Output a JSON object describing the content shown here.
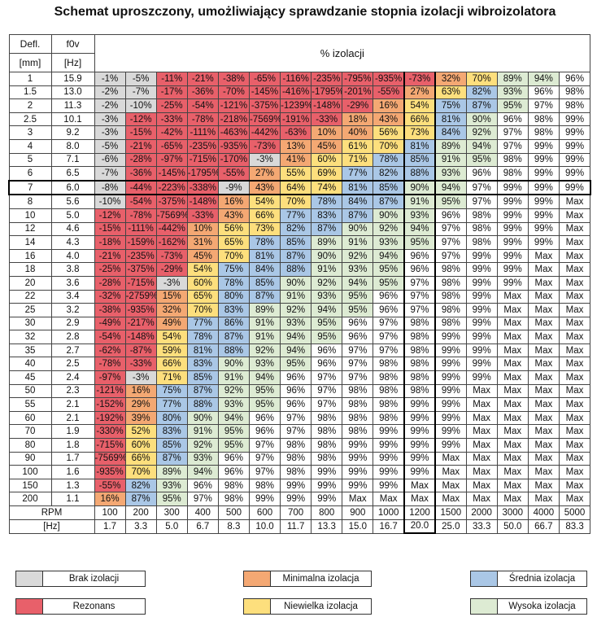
{
  "title": "Schemat uproszczony, umożliwiający sprawdzanie stopnia izolacji wibroizolatora",
  "colors": {
    "none": "#d9d9d9",
    "resonance": "#e8606a",
    "minimal": "#f4a873",
    "slight": "#fddf7d",
    "medium": "#aac7e6",
    "high": "#ddebd3",
    "white": "#ffffff"
  },
  "table": {
    "h1": "Defl.",
    "h2": "f0v",
    "h3": "[mm]",
    "h4": "[Hz]",
    "span_header": "% izolacji",
    "highlight_row": 8,
    "highlight_col": 10,
    "rows": [
      {
        "defl": "1",
        "f0": "15.9",
        "cells": [
          "-1%",
          "-5%",
          "-11%",
          "-21%",
          "-38%",
          "-65%",
          "-116%",
          "-235%",
          "-795%",
          "-935%",
          "-73%",
          "32%",
          "70%",
          "89%",
          "94%",
          "96%"
        ]
      },
      {
        "defl": "1.5",
        "f0": "13.0",
        "cells": [
          "-2%",
          "-7%",
          "-17%",
          "-36%",
          "-70%",
          "-145%",
          "-416%",
          "-1795%",
          "-201%",
          "-55%",
          "27%",
          "63%",
          "82%",
          "93%",
          "96%",
          "98%"
        ]
      },
      {
        "defl": "2",
        "f0": "11.3",
        "cells": [
          "-2%",
          "-10%",
          "-25%",
          "-54%",
          "-121%",
          "-375%",
          "-1239%",
          "-148%",
          "-29%",
          "16%",
          "54%",
          "75%",
          "87%",
          "95%",
          "97%",
          "98%"
        ]
      },
      {
        "defl": "2.5",
        "f0": "10.1",
        "cells": [
          "-3%",
          "-12%",
          "-33%",
          "-78%",
          "-218%",
          "-7569%",
          "-191%",
          "-33%",
          "18%",
          "43%",
          "66%",
          "81%",
          "90%",
          "96%",
          "98%",
          "99%"
        ]
      },
      {
        "defl": "3",
        "f0": "9.2",
        "cells": [
          "-3%",
          "-15%",
          "-42%",
          "-111%",
          "-463%",
          "-442%",
          "-63%",
          "10%",
          "40%",
          "56%",
          "73%",
          "84%",
          "92%",
          "97%",
          "98%",
          "99%"
        ]
      },
      {
        "defl": "4",
        "f0": "8.0",
        "cells": [
          "-5%",
          "-21%",
          "-65%",
          "-235%",
          "-935%",
          "-73%",
          "13%",
          "45%",
          "61%",
          "70%",
          "81%",
          "89%",
          "94%",
          "97%",
          "99%",
          "99%"
        ]
      },
      {
        "defl": "5",
        "f0": "7.1",
        "cells": [
          "-6%",
          "-28%",
          "-97%",
          "-715%",
          "-170%",
          "-3%",
          "41%",
          "60%",
          "71%",
          "78%",
          "85%",
          "91%",
          "95%",
          "98%",
          "99%",
          "99%"
        ]
      },
      {
        "defl": "6",
        "f0": "6.5",
        "cells": [
          "-7%",
          "-36%",
          "-145%",
          "-1795%",
          "-55%",
          "27%",
          "55%",
          "69%",
          "77%",
          "82%",
          "88%",
          "93%",
          "96%",
          "98%",
          "99%",
          "99%"
        ]
      },
      {
        "defl": "7",
        "f0": "6.0",
        "cells": [
          "-8%",
          "-44%",
          "-223%",
          "-338%",
          "-9%",
          "43%",
          "64%",
          "74%",
          "81%",
          "85%",
          "90%",
          "94%",
          "97%",
          "99%",
          "99%",
          "99%"
        ]
      },
      {
        "defl": "8",
        "f0": "5.6",
        "cells": [
          "-10%",
          "-54%",
          "-375%",
          "-148%",
          "16%",
          "54%",
          "70%",
          "78%",
          "84%",
          "87%",
          "91%",
          "95%",
          "97%",
          "99%",
          "99%",
          "Max"
        ]
      },
      {
        "defl": "10",
        "f0": "5.0",
        "cells": [
          "-12%",
          "-78%",
          "-7569%",
          "-33%",
          "43%",
          "66%",
          "77%",
          "83%",
          "87%",
          "90%",
          "93%",
          "96%",
          "98%",
          "99%",
          "99%",
          "Max"
        ]
      },
      {
        "defl": "12",
        "f0": "4.6",
        "cells": [
          "-15%",
          "-111%",
          "-442%",
          "10%",
          "56%",
          "73%",
          "82%",
          "87%",
          "90%",
          "92%",
          "94%",
          "97%",
          "98%",
          "99%",
          "99%",
          "Max"
        ]
      },
      {
        "defl": "14",
        "f0": "4.3",
        "cells": [
          "-18%",
          "-159%",
          "-162%",
          "31%",
          "65%",
          "78%",
          "85%",
          "89%",
          "91%",
          "93%",
          "95%",
          "97%",
          "98%",
          "99%",
          "99%",
          "Max"
        ]
      },
      {
        "defl": "16",
        "f0": "4.0",
        "cells": [
          "-21%",
          "-235%",
          "-73%",
          "45%",
          "70%",
          "81%",
          "87%",
          "90%",
          "92%",
          "94%",
          "96%",
          "97%",
          "99%",
          "99%",
          "Max",
          "Max"
        ]
      },
      {
        "defl": "18",
        "f0": "3.8",
        "cells": [
          "-25%",
          "-375%",
          "-29%",
          "54%",
          "75%",
          "84%",
          "88%",
          "91%",
          "93%",
          "95%",
          "96%",
          "98%",
          "99%",
          "99%",
          "Max",
          "Max"
        ]
      },
      {
        "defl": "20",
        "f0": "3.6",
        "cells": [
          "-28%",
          "-715%",
          "-3%",
          "60%",
          "78%",
          "85%",
          "90%",
          "92%",
          "94%",
          "95%",
          "97%",
          "98%",
          "99%",
          "99%",
          "Max",
          "Max"
        ]
      },
      {
        "defl": "22",
        "f0": "3.4",
        "cells": [
          "-32%",
          "-2759%",
          "15%",
          "65%",
          "80%",
          "87%",
          "91%",
          "93%",
          "95%",
          "96%",
          "97%",
          "98%",
          "99%",
          "Max",
          "Max",
          "Max"
        ]
      },
      {
        "defl": "25",
        "f0": "3.2",
        "cells": [
          "-38%",
          "-935%",
          "32%",
          "70%",
          "83%",
          "89%",
          "92%",
          "94%",
          "95%",
          "96%",
          "97%",
          "98%",
          "99%",
          "Max",
          "Max",
          "Max"
        ]
      },
      {
        "defl": "30",
        "f0": "2.9",
        "cells": [
          "-49%",
          "-217%",
          "49%",
          "77%",
          "86%",
          "91%",
          "93%",
          "95%",
          "96%",
          "97%",
          "98%",
          "98%",
          "99%",
          "Max",
          "Max",
          "Max"
        ]
      },
      {
        "defl": "32",
        "f0": "2.8",
        "cells": [
          "-54%",
          "-148%",
          "54%",
          "78%",
          "87%",
          "91%",
          "94%",
          "95%",
          "96%",
          "97%",
          "98%",
          "99%",
          "99%",
          "Max",
          "Max",
          "Max"
        ]
      },
      {
        "defl": "35",
        "f0": "2.7",
        "cells": [
          "-62%",
          "-87%",
          "59%",
          "81%",
          "88%",
          "92%",
          "94%",
          "96%",
          "97%",
          "97%",
          "98%",
          "99%",
          "99%",
          "Max",
          "Max",
          "Max"
        ]
      },
      {
        "defl": "40",
        "f0": "2.5",
        "cells": [
          "-78%",
          "-33%",
          "66%",
          "83%",
          "90%",
          "93%",
          "95%",
          "96%",
          "97%",
          "98%",
          "98%",
          "99%",
          "99%",
          "Max",
          "Max",
          "Max"
        ]
      },
      {
        "defl": "45",
        "f0": "2.4",
        "cells": [
          "-97%",
          "-3%",
          "71%",
          "85%",
          "91%",
          "94%",
          "96%",
          "97%",
          "97%",
          "98%",
          "98%",
          "99%",
          "99%",
          "Max",
          "Max",
          "Max"
        ]
      },
      {
        "defl": "50",
        "f0": "2.3",
        "cells": [
          "-121%",
          "16%",
          "75%",
          "87%",
          "92%",
          "95%",
          "96%",
          "97%",
          "98%",
          "98%",
          "98%",
          "99%",
          "Max",
          "Max",
          "Max",
          "Max"
        ]
      },
      {
        "defl": "55",
        "f0": "2.1",
        "cells": [
          "-152%",
          "29%",
          "77%",
          "88%",
          "93%",
          "95%",
          "96%",
          "97%",
          "98%",
          "98%",
          "99%",
          "99%",
          "Max",
          "Max",
          "Max",
          "Max"
        ]
      },
      {
        "defl": "60",
        "f0": "2.1",
        "cells": [
          "-192%",
          "39%",
          "80%",
          "90%",
          "94%",
          "96%",
          "97%",
          "98%",
          "98%",
          "98%",
          "99%",
          "99%",
          "Max",
          "Max",
          "Max",
          "Max"
        ]
      },
      {
        "defl": "70",
        "f0": "1.9",
        "cells": [
          "-330%",
          "52%",
          "83%",
          "91%",
          "95%",
          "96%",
          "97%",
          "98%",
          "98%",
          "99%",
          "99%",
          "99%",
          "Max",
          "Max",
          "Max",
          "Max"
        ]
      },
      {
        "defl": "80",
        "f0": "1.8",
        "cells": [
          "-715%",
          "60%",
          "85%",
          "92%",
          "95%",
          "97%",
          "98%",
          "98%",
          "99%",
          "99%",
          "99%",
          "99%",
          "Max",
          "Max",
          "Max",
          "Max"
        ]
      },
      {
        "defl": "90",
        "f0": "1.7",
        "cells": [
          "-7569%",
          "66%",
          "87%",
          "93%",
          "96%",
          "97%",
          "98%",
          "98%",
          "99%",
          "99%",
          "99%",
          "Max",
          "Max",
          "Max",
          "Max",
          "Max"
        ]
      },
      {
        "defl": "100",
        "f0": "1.6",
        "cells": [
          "-935%",
          "70%",
          "89%",
          "94%",
          "96%",
          "97%",
          "98%",
          "99%",
          "99%",
          "99%",
          "99%",
          "Max",
          "Max",
          "Max",
          "Max",
          "Max"
        ]
      },
      {
        "defl": "150",
        "f0": "1.3",
        "cells": [
          "-55%",
          "82%",
          "93%",
          "96%",
          "98%",
          "98%",
          "99%",
          "99%",
          "99%",
          "99%",
          "Max",
          "Max",
          "Max",
          "Max",
          "Max",
          "Max"
        ]
      },
      {
        "defl": "200",
        "f0": "1.1",
        "cells": [
          "16%",
          "87%",
          "95%",
          "97%",
          "98%",
          "99%",
          "99%",
          "99%",
          "Max",
          "Max",
          "Max",
          "Max",
          "Max",
          "Max",
          "Max",
          "Max"
        ]
      }
    ],
    "rpm_label": "RPM",
    "rpm": [
      "100",
      "200",
      "300",
      "400",
      "500",
      "600",
      "700",
      "800",
      "900",
      "1000",
      "1200",
      "1500",
      "2000",
      "3000",
      "4000",
      "5000"
    ],
    "hz_label": "[Hz]",
    "hz": [
      "1.7",
      "3.3",
      "5.0",
      "6.7",
      "8.3",
      "10.0",
      "11.7",
      "13.3",
      "15.0",
      "16.7",
      "20.0",
      "25.0",
      "33.3",
      "50.0",
      "66.7",
      "83.3"
    ]
  },
  "legend": {
    "none": "Brak izolacji",
    "minimal": "Minimalna izolacja",
    "medium": "Średnia izolacja",
    "resonance": "Rezonans",
    "slight": "Niewielka izolacja",
    "high": "Wysoka izolacja"
  },
  "chart_data": {
    "type": "table",
    "title": "Schemat uproszczony, umożliwiający sprawdzanie stopnia izolacji wibroizolatora",
    "row_header": [
      "Defl. [mm]",
      "f0v [Hz]"
    ],
    "column_header": "% izolacji",
    "columns_rpm": [
      "100",
      "200",
      "300",
      "400",
      "500",
      "600",
      "700",
      "800",
      "900",
      "1000",
      "1200",
      "1500",
      "2000",
      "3000",
      "4000",
      "5000"
    ],
    "columns_hz": [
      "1.7",
      "3.3",
      "5.0",
      "6.7",
      "8.3",
      "10.0",
      "11.7",
      "13.3",
      "15.0",
      "16.7",
      "20.0",
      "25.0",
      "33.3",
      "50.0",
      "66.7",
      "83.3"
    ],
    "legend": [
      "Brak izolacji",
      "Rezonans",
      "Minimalna izolacja",
      "Niewielka izolacja",
      "Średnia izolacja",
      "Wysoka izolacja"
    ]
  }
}
